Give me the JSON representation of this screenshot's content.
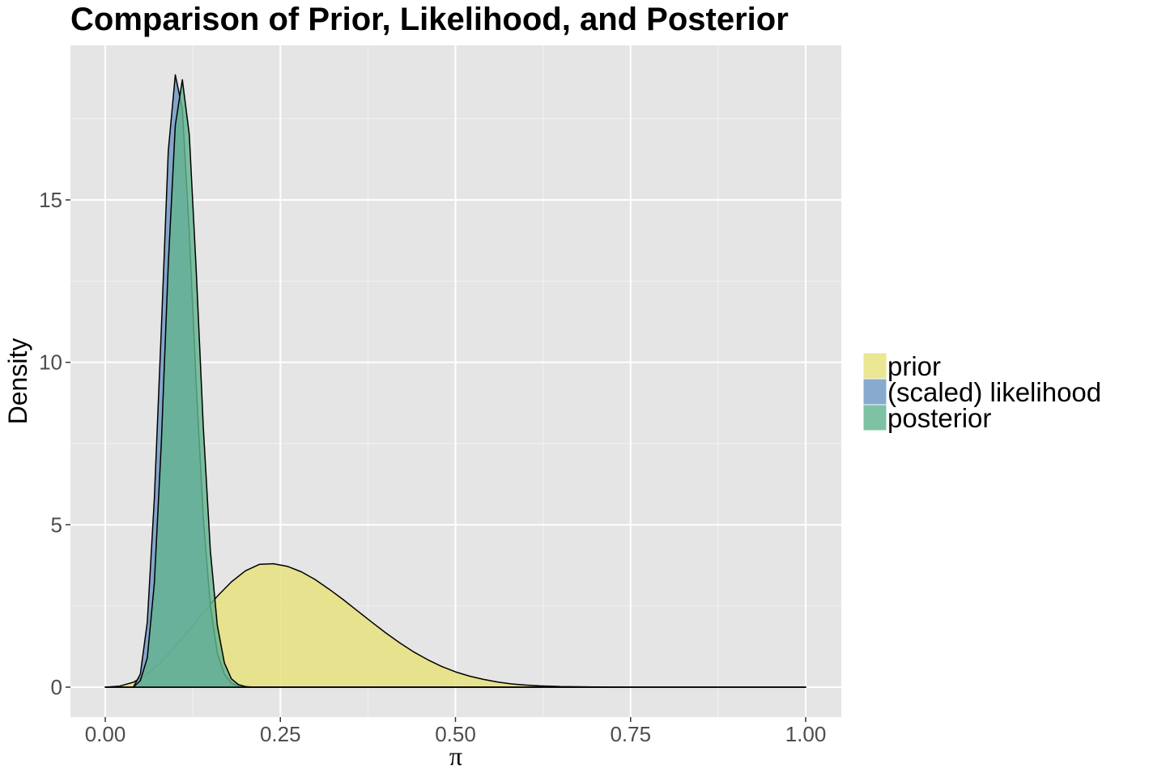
{
  "chart_data": {
    "type": "area",
    "title": "Comparison of Prior, Likelihood, and Posterior",
    "xlabel": "π",
    "ylabel": "Density",
    "xlim": [
      0,
      1
    ],
    "ylim": [
      0,
      18.8
    ],
    "x_ticks": [
      0,
      0.25,
      0.5,
      0.75,
      1
    ],
    "x_tick_labels": [
      "0.00",
      "0.25",
      "0.50",
      "0.75",
      "1.00"
    ],
    "y_ticks": [
      0,
      5,
      10,
      15
    ],
    "y_tick_labels": [
      "0",
      "5",
      "10",
      "15"
    ],
    "grid": true,
    "legend_position": "right",
    "series": [
      {
        "name": "prior",
        "color": "#e6e07a",
        "points": [
          [
            0,
            0
          ],
          [
            0.02,
            0.03
          ],
          [
            0.04,
            0.15
          ],
          [
            0.06,
            0.4
          ],
          [
            0.08,
            0.78
          ],
          [
            0.1,
            1.25
          ],
          [
            0.12,
            1.77
          ],
          [
            0.14,
            2.3
          ],
          [
            0.16,
            2.8
          ],
          [
            0.18,
            3.24
          ],
          [
            0.2,
            3.58
          ],
          [
            0.22,
            3.78
          ],
          [
            0.24,
            3.8
          ],
          [
            0.26,
            3.72
          ],
          [
            0.28,
            3.55
          ],
          [
            0.3,
            3.31
          ],
          [
            0.32,
            3.01
          ],
          [
            0.34,
            2.69
          ],
          [
            0.36,
            2.35
          ],
          [
            0.38,
            2.01
          ],
          [
            0.4,
            1.68
          ],
          [
            0.42,
            1.37
          ],
          [
            0.44,
            1.09
          ],
          [
            0.46,
            0.85
          ],
          [
            0.48,
            0.64
          ],
          [
            0.5,
            0.47
          ],
          [
            0.52,
            0.34
          ],
          [
            0.54,
            0.24
          ],
          [
            0.56,
            0.16
          ],
          [
            0.58,
            0.1
          ],
          [
            0.6,
            0.065
          ],
          [
            0.62,
            0.04
          ],
          [
            0.65,
            0.018
          ],
          [
            0.7,
            0.004
          ],
          [
            0.75,
            0.001
          ],
          [
            0.8,
            0
          ],
          [
            1.0,
            0
          ]
        ]
      },
      {
        "name": "(scaled) likelihood",
        "color": "#6f97c4",
        "points": [
          [
            0,
            0
          ],
          [
            0.04,
            0
          ],
          [
            0.05,
            0.4
          ],
          [
            0.06,
            2.0
          ],
          [
            0.07,
            5.8
          ],
          [
            0.08,
            11.0
          ],
          [
            0.09,
            16.5
          ],
          [
            0.1,
            18.85
          ],
          [
            0.11,
            17.8
          ],
          [
            0.12,
            14.0
          ],
          [
            0.13,
            9.3
          ],
          [
            0.14,
            5.2
          ],
          [
            0.15,
            2.5
          ],
          [
            0.16,
            1.05
          ],
          [
            0.17,
            0.4
          ],
          [
            0.18,
            0.13
          ],
          [
            0.19,
            0.04
          ],
          [
            0.2,
            0.01
          ],
          [
            0.21,
            0
          ],
          [
            1.0,
            0
          ]
        ]
      },
      {
        "name": "posterior",
        "color": "#63b38f",
        "points": [
          [
            0,
            0
          ],
          [
            0.04,
            0
          ],
          [
            0.05,
            0.2
          ],
          [
            0.06,
            0.9
          ],
          [
            0.07,
            3.2
          ],
          [
            0.08,
            7.5
          ],
          [
            0.09,
            13.0
          ],
          [
            0.1,
            17.3
          ],
          [
            0.11,
            18.7
          ],
          [
            0.12,
            17.0
          ],
          [
            0.13,
            12.8
          ],
          [
            0.14,
            8.0
          ],
          [
            0.15,
            4.2
          ],
          [
            0.16,
            1.9
          ],
          [
            0.17,
            0.75
          ],
          [
            0.18,
            0.26
          ],
          [
            0.19,
            0.08
          ],
          [
            0.2,
            0.02
          ],
          [
            0.21,
            0
          ],
          [
            1.0,
            0
          ]
        ]
      }
    ]
  }
}
